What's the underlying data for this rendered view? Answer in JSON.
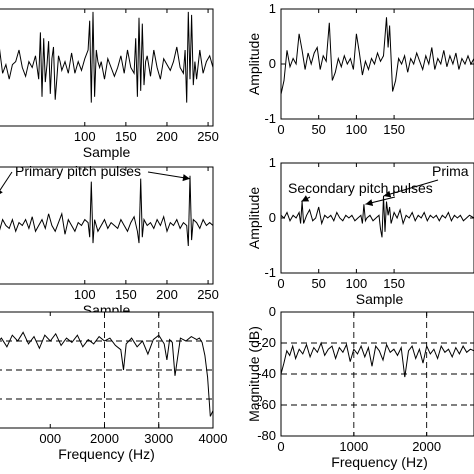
{
  "chart_data": [
    {
      "type": "line",
      "panel": "top-left",
      "xlabel": "Sample",
      "ylabel": "",
      "xlim": [
        -8,
        256
      ],
      "ylim": [
        -1,
        1
      ],
      "xticks": [
        "100",
        "150",
        "200",
        "250"
      ],
      "yticks": [],
      "series": [
        {
          "x": [
            -8,
            -4,
            0,
            4,
            8,
            12,
            16,
            20,
            24,
            28,
            32,
            36,
            40,
            44,
            46,
            48,
            50,
            52,
            54,
            56,
            58,
            60,
            62,
            64,
            66,
            68,
            70,
            72,
            76,
            80,
            84,
            88,
            92,
            96,
            100,
            104,
            106,
            108,
            110,
            112,
            114,
            116,
            118,
            120,
            124,
            128,
            132,
            136,
            140,
            144,
            148,
            152,
            156,
            160,
            162,
            164,
            166,
            168,
            170,
            172,
            174,
            176,
            180,
            184,
            188,
            192,
            196,
            200,
            204,
            208,
            212,
            216,
            220,
            222,
            224,
            226,
            228,
            230,
            232,
            234,
            236,
            240,
            244,
            248,
            252,
            256
          ],
          "y": [
            0.1,
            0.35,
            -0.1,
            0.05,
            -0.2,
            0.05,
            0.1,
            0.3,
            0.0,
            -0.15,
            0.1,
            0.0,
            0.2,
            -0.2,
            0.6,
            -0.5,
            0.5,
            -0.25,
            0.05,
            0.45,
            -0.45,
            0.15,
            0.35,
            -0.55,
            -0.2,
            0.2,
            0.1,
            -0.05,
            0.1,
            -0.1,
            0.25,
            -0.1,
            0.1,
            -0.05,
            0.15,
            0.3,
            0.8,
            -0.6,
            0.95,
            -0.5,
            0.3,
            0.1,
            0.0,
            0.1,
            -0.2,
            0.15,
            0.0,
            -0.15,
            0.0,
            0.2,
            -0.1,
            0.3,
            0.0,
            -0.1,
            0.5,
            -0.5,
            0.85,
            -0.4,
            0.75,
            -0.3,
            0.1,
            0.2,
            -0.15,
            0.3,
            0.0,
            -0.2,
            0.15,
            0.05,
            -0.05,
            0.1,
            0.35,
            0.0,
            -0.1,
            0.3,
            -0.6,
            0.95,
            -0.2,
            0.9,
            -0.3,
            0.1,
            -0.2,
            0.3,
            -0.1,
            0.1,
            0.2,
            0.0
          ]
        }
      ]
    },
    {
      "type": "line",
      "panel": "top-right",
      "xlabel": "",
      "ylabel": "Amplitude",
      "xlim": [
        0,
        256
      ],
      "ylim": [
        -1,
        1
      ],
      "xticks": [
        "0",
        "50",
        "100",
        "150"
      ],
      "yticks": [
        "-1",
        "0",
        "1"
      ],
      "series": [
        {
          "x": [
            0,
            4,
            8,
            12,
            16,
            20,
            24,
            28,
            32,
            36,
            40,
            44,
            48,
            52,
            56,
            60,
            64,
            66,
            68,
            72,
            76,
            80,
            84,
            88,
            92,
            96,
            100,
            104,
            108,
            112,
            116,
            120,
            124,
            128,
            132,
            136,
            140,
            142,
            144,
            148,
            152,
            156,
            160,
            164,
            168,
            172,
            176,
            180,
            184,
            188,
            192,
            196,
            200,
            204,
            208,
            212,
            216,
            220,
            224,
            228,
            232,
            236,
            240,
            244,
            248,
            252,
            256
          ],
          "y": [
            -0.55,
            -0.3,
            0.25,
            -0.05,
            0.1,
            0.0,
            0.55,
            0.25,
            -0.1,
            0.2,
            0.0,
            0.2,
            0.3,
            -0.1,
            0.15,
            0.05,
            0.75,
            0.2,
            -0.3,
            -0.15,
            0.1,
            -0.05,
            0.15,
            0.0,
            0.1,
            -0.1,
            0.55,
            0.2,
            -0.2,
            0.05,
            -0.1,
            0.1,
            0.0,
            0.2,
            0.05,
            0.15,
            0.85,
            0.3,
            0.7,
            -0.5,
            -0.3,
            0.1,
            0.0,
            0.15,
            -0.15,
            0.1,
            0.0,
            0.2,
            0.05,
            -0.1,
            0.15,
            0.0,
            0.3,
            -0.1,
            0.1,
            0.0,
            0.25,
            -0.05,
            0.15,
            0.0,
            0.2,
            -0.1,
            0.1,
            0.0,
            0.15,
            0.0,
            0.1
          ]
        }
      ]
    },
    {
      "type": "line",
      "panel": "middle-left",
      "xlabel": "Sample",
      "ylabel": "",
      "xlim": [
        -8,
        256
      ],
      "ylim": [
        -1,
        1
      ],
      "xticks": [
        "100",
        "150",
        "200",
        "250"
      ],
      "yticks": [],
      "annotations": [
        {
          "text": "Primary pitch pulses",
          "targets": [
            [
              -8,
              0.5
            ],
            [
              228,
              0.8
            ]
          ]
        }
      ],
      "series": [
        {
          "x": [
            -8,
            -4,
            0,
            4,
            8,
            12,
            16,
            20,
            24,
            28,
            32,
            36,
            40,
            44,
            48,
            52,
            56,
            60,
            64,
            68,
            72,
            76,
            80,
            84,
            88,
            92,
            96,
            100,
            104,
            106,
            108,
            110,
            112,
            116,
            120,
            124,
            128,
            132,
            136,
            140,
            144,
            148,
            152,
            156,
            160,
            164,
            166,
            168,
            170,
            172,
            176,
            180,
            184,
            188,
            192,
            196,
            200,
            204,
            208,
            212,
            216,
            220,
            224,
            226,
            228,
            230,
            232,
            236,
            240,
            244,
            248,
            252,
            256
          ],
          "y": [
            0.05,
            -0.1,
            0.1,
            0.0,
            -0.05,
            0.1,
            -0.1,
            0.05,
            0.0,
            0.1,
            -0.05,
            0.15,
            -0.1,
            0.0,
            0.1,
            -0.05,
            0.2,
            0.0,
            -0.1,
            0.05,
            0.2,
            -0.15,
            0.1,
            0.0,
            -0.1,
            0.05,
            0.0,
            0.1,
            0.05,
            -0.2,
            0.75,
            -0.3,
            0.1,
            -0.1,
            0.0,
            0.1,
            -0.05,
            0.05,
            0.0,
            -0.05,
            0.1,
            0.0,
            -0.1,
            0.05,
            0.15,
            -0.1,
            -0.3,
            0.8,
            -0.2,
            0.1,
            0.0,
            0.05,
            -0.05,
            0.1,
            0.0,
            0.15,
            -0.1,
            0.05,
            0.0,
            0.1,
            -0.05,
            0.05,
            0.0,
            -0.35,
            0.85,
            -0.25,
            0.1,
            0.05,
            -0.05,
            0.1,
            0.0,
            0.05,
            0.0
          ]
        }
      ]
    },
    {
      "type": "line",
      "panel": "middle-right",
      "xlabel": "Sample",
      "ylabel": "Amplitude",
      "xlim": [
        0,
        256
      ],
      "ylim": [
        -1,
        1
      ],
      "xticks": [
        "0",
        "50",
        "100",
        "150"
      ],
      "yticks": [
        "-1",
        "0",
        "1"
      ],
      "annotations": [
        {
          "text": "Secondary pitch pulses",
          "targets": [
            [
              27,
              0.3
            ],
            [
              112,
              0.25
            ]
          ]
        },
        {
          "text": "Prima",
          "targets": [
            [
              136,
              0.4
            ]
          ]
        }
      ],
      "series": [
        {
          "x": [
            0,
            4,
            8,
            12,
            16,
            20,
            24,
            26,
            28,
            30,
            34,
            38,
            42,
            46,
            50,
            54,
            58,
            62,
            66,
            70,
            74,
            78,
            82,
            86,
            90,
            94,
            98,
            102,
            106,
            108,
            110,
            112,
            114,
            118,
            122,
            126,
            130,
            132,
            134,
            136,
            138,
            140,
            142,
            144,
            146,
            150,
            154,
            158,
            162,
            166,
            170,
            174,
            178,
            182,
            186,
            190,
            194,
            198,
            202,
            206,
            210,
            214,
            218,
            222,
            226,
            230,
            234,
            238,
            242,
            246,
            250,
            256
          ],
          "y": [
            0.05,
            0.0,
            0.1,
            -0.05,
            0.05,
            0.0,
            0.1,
            -0.1,
            0.3,
            -0.1,
            0.05,
            0.15,
            -0.05,
            0.0,
            0.2,
            -0.1,
            0.05,
            0.0,
            0.05,
            -0.05,
            0.1,
            0.0,
            -0.05,
            0.05,
            0.0,
            0.05,
            -0.05,
            0.0,
            0.05,
            -0.1,
            0.25,
            -0.05,
            0.0,
            0.05,
            -0.05,
            0.0,
            0.05,
            -0.2,
            -0.35,
            0.4,
            -0.25,
            0.3,
            0.05,
            0.2,
            -0.1,
            0.1,
            0.0,
            0.15,
            -0.1,
            0.05,
            0.0,
            0.1,
            -0.05,
            0.05,
            0.0,
            0.1,
            -0.05,
            0.05,
            0.0,
            0.05,
            -0.05,
            0.05,
            0.0,
            0.1,
            -0.05,
            0.05,
            0.0,
            0.05,
            -0.05,
            0.0,
            0.05,
            0.0
          ]
        }
      ]
    },
    {
      "type": "line",
      "panel": "bottom-left",
      "xlabel": "Frequency (Hz)",
      "ylabel": "",
      "xlim": [
        0,
        4000
      ],
      "ylim": [
        -80,
        0
      ],
      "xticks": [
        "000",
        "2000",
        "3000",
        "4000"
      ],
      "yticks": [],
      "grid": true,
      "series": [
        {
          "x": [
            0,
            100,
            200,
            300,
            400,
            500,
            600,
            700,
            800,
            900,
            1000,
            1100,
            1200,
            1300,
            1400,
            1500,
            1600,
            1700,
            1800,
            1900,
            2000,
            2100,
            2200,
            2300,
            2350,
            2400,
            2500,
            2600,
            2700,
            2800,
            2900,
            3000,
            3100,
            3150,
            3200,
            3250,
            3300,
            3400,
            3500,
            3600,
            3700,
            3750,
            3800,
            3850,
            3900,
            3950,
            4000
          ],
          "y": [
            -22,
            -18,
            -24,
            -16,
            -20,
            -14,
            -22,
            -17,
            -25,
            -16,
            -20,
            -15,
            -23,
            -18,
            -21,
            -16,
            -24,
            -19,
            -22,
            -17,
            -20,
            -18,
            -23,
            -26,
            -40,
            -22,
            -18,
            -24,
            -20,
            -29,
            -19,
            -16,
            -22,
            -33,
            -19,
            -21,
            -44,
            -18,
            -20,
            -17,
            -19,
            -18,
            -21,
            -30,
            -45,
            -72,
            -68
          ]
        }
      ]
    },
    {
      "type": "line",
      "panel": "bottom-right",
      "xlabel": "Frequency (Hz)",
      "ylabel": "Magnitude (dB)",
      "xlim": [
        0,
        2650
      ],
      "ylim": [
        -80,
        0
      ],
      "xticks": [
        "0",
        "1000",
        "2000"
      ],
      "yticks": [
        "-80",
        "-60",
        "-40",
        "-20",
        "0"
      ],
      "grid": true,
      "series": [
        {
          "x": [
            0,
            40,
            80,
            120,
            160,
            200,
            250,
            300,
            350,
            400,
            450,
            500,
            550,
            600,
            650,
            700,
            750,
            800,
            850,
            900,
            950,
            1000,
            1050,
            1100,
            1150,
            1200,
            1250,
            1300,
            1350,
            1400,
            1450,
            1500,
            1550,
            1600,
            1650,
            1700,
            1750,
            1800,
            1850,
            1900,
            1950,
            2000,
            2050,
            2100,
            2150,
            2200,
            2250,
            2300,
            2350,
            2400,
            2450,
            2500,
            2550,
            2600,
            2650
          ],
          "y": [
            -40,
            -33,
            -25,
            -28,
            -22,
            -30,
            -24,
            -27,
            -21,
            -29,
            -23,
            -26,
            -20,
            -28,
            -24,
            -22,
            -30,
            -23,
            -26,
            -21,
            -32,
            -24,
            -27,
            -22,
            -29,
            -23,
            -35,
            -22,
            -25,
            -31,
            -21,
            -26,
            -24,
            -28,
            -23,
            -42,
            -25,
            -22,
            -30,
            -24,
            -33,
            -22,
            -27,
            -24,
            -30,
            -22,
            -26,
            -24,
            -29,
            -23,
            -27,
            -22,
            -26,
            -24,
            -25
          ]
        }
      ]
    }
  ]
}
